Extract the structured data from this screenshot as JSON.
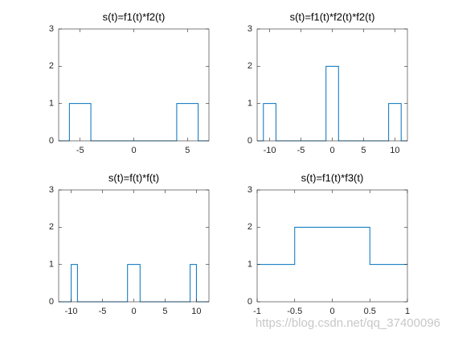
{
  "chart_data": [
    {
      "type": "line",
      "title": "s(t)=f1(t)*f2(t)",
      "x": [
        -7,
        -6,
        -6,
        -4,
        -4,
        4,
        4,
        6,
        6,
        7
      ],
      "values": [
        0,
        0,
        1,
        1,
        0,
        0,
        1,
        1,
        0,
        0
      ],
      "color": "#0072bd",
      "xlim": [
        -7,
        7
      ],
      "xticks": [
        -5,
        0,
        5
      ],
      "ylim": [
        0,
        3
      ],
      "yticks": [
        0,
        1,
        2,
        3
      ]
    },
    {
      "type": "line",
      "title": "s(t)=f1(t)*f2(t)*f2(t)",
      "x": [
        -12,
        -11,
        -11,
        -9,
        -9,
        -1,
        -1,
        1,
        1,
        9,
        9,
        11,
        11,
        12
      ],
      "values": [
        0,
        0,
        1,
        1,
        0,
        0,
        2,
        2,
        0,
        0,
        1,
        1,
        0,
        0
      ],
      "color": "#0072bd",
      "xlim": [
        -12,
        12
      ],
      "xticks": [
        -10,
        -5,
        0,
        5,
        10
      ],
      "ylim": [
        0,
        3
      ],
      "yticks": [
        0,
        1,
        2,
        3
      ]
    },
    {
      "type": "line",
      "title": "s(t)=f(t)*f(t)",
      "x": [
        -12,
        -10,
        -10,
        -9,
        -9,
        -1,
        -1,
        1,
        1,
        9,
        9,
        10,
        10,
        12
      ],
      "values": [
        0,
        0,
        1,
        1,
        0,
        0,
        1,
        1,
        0,
        0,
        1,
        1,
        0,
        0
      ],
      "color": "#0072bd",
      "xlim": [
        -12,
        12
      ],
      "xticks": [
        -10,
        -5,
        0,
        5,
        10
      ],
      "ylim": [
        0,
        3
      ],
      "yticks": [
        0,
        1,
        2,
        3
      ]
    },
    {
      "type": "line",
      "title": "s(t)=f1(t)*f3(t)",
      "x": [
        -1,
        -0.5,
        -0.5,
        0.5,
        0.5,
        1
      ],
      "values": [
        1,
        1,
        2,
        2,
        1,
        1
      ],
      "color": "#0072bd",
      "xlim": [
        -1,
        1
      ],
      "xticks": [
        -1,
        -0.5,
        0,
        0.5,
        1
      ],
      "ylim": [
        0,
        3
      ],
      "yticks": [
        0,
        1,
        2,
        3
      ]
    }
  ],
  "watermark": "https://blog.csdn.net/qq_37400096"
}
